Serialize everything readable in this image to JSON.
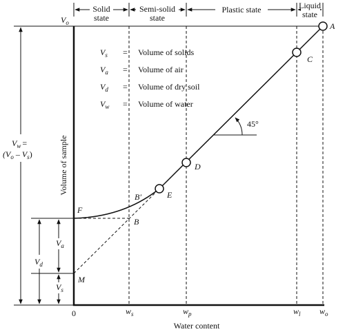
{
  "header": {
    "states": [
      {
        "lines": [
          "Solid",
          "state"
        ]
      },
      {
        "lines": [
          "Semi-solid",
          "state"
        ]
      },
      {
        "lines": [
          "Plastic state"
        ]
      },
      {
        "lines": [
          "Liquid",
          "state"
        ]
      }
    ]
  },
  "legend": [
    {
      "symbol": "V",
      "sub": "s",
      "eq": "=",
      "text": "Volume of solids"
    },
    {
      "symbol": "V",
      "sub": "a",
      "eq": "=",
      "text": "Volume of air"
    },
    {
      "symbol": "V",
      "sub": "d",
      "eq": "=",
      "text": "Volume of dry soil"
    },
    {
      "symbol": "V",
      "sub": "w",
      "eq": "=",
      "text": "Volume of water"
    }
  ],
  "points": {
    "A": "A",
    "B": "B",
    "B_prime": "B′",
    "C": "C",
    "D": "D",
    "E": "E",
    "F": "F",
    "M": "M"
  },
  "angle": "45°",
  "y_axis": {
    "title": "Volume of sample",
    "top": {
      "symbol": "V",
      "sub": "o"
    }
  },
  "dimensions": {
    "vw": {
      "symbol": "V",
      "sub": "w",
      "eq": "=",
      "expr": [
        "(V",
        "o",
        " – V",
        "s",
        ")"
      ]
    },
    "vd": {
      "symbol": "V",
      "sub": "d"
    },
    "va": {
      "symbol": "V",
      "sub": "a"
    },
    "vs": {
      "symbol": "V",
      "sub": "s"
    }
  },
  "x_axis": {
    "title": "Water content",
    "origin": "0",
    "ticks": [
      {
        "symbol": "w",
        "sub": "s"
      },
      {
        "symbol": "w",
        "sub": "p"
      },
      {
        "symbol": "w",
        "sub": "l"
      },
      {
        "symbol": "w",
        "sub": "o"
      }
    ]
  }
}
